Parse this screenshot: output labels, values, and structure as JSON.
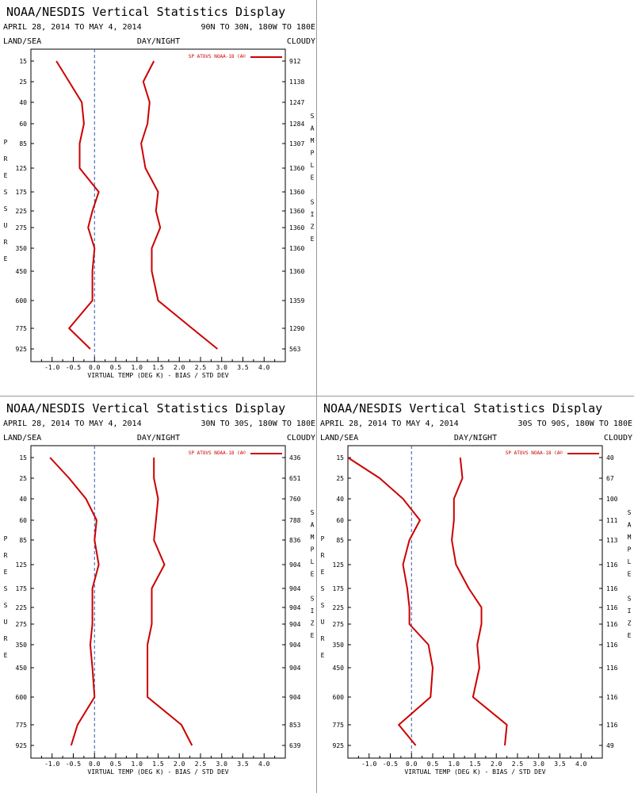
{
  "chart_data": [
    {
      "type": "line",
      "title": "NOAA/NESDIS Vertical Statistics Display",
      "date_range": "APRIL 28, 2014 TO MAY 4, 2014",
      "region": "90N TO 30N, 180W TO 180E",
      "land_sea": "LAND/SEA",
      "day_night": "DAY/NIGHT",
      "cloudy": "CLOUDY",
      "legend": "SP ATOVS NOAA-18 (A©",
      "xlabel": "VIRTUAL TEMP (DEG K) - BIAS / STD DEV",
      "ylabel_left": "PRESSURE",
      "ylabel_right": "SAMPLE SIZE",
      "xlim": [
        -1.5,
        4.5
      ],
      "xticks": [
        "-1.0",
        "-0.5",
        "0.0",
        "0.5",
        "1.0",
        "1.5",
        "2.0",
        "2.5",
        "3.0",
        "3.5",
        "4.0"
      ],
      "pressure_levels": [
        "15",
        "25",
        "40",
        "60",
        "85",
        "125",
        "175",
        "225",
        "275",
        "350",
        "450",
        "600",
        "775",
        "925"
      ],
      "sample_size": [
        "912",
        "1138",
        "1247",
        "1284",
        "1307",
        "1360",
        "1360",
        "1360",
        "1360",
        "1360",
        "1360",
        "1359",
        "1290",
        "563"
      ],
      "series": [
        {
          "values": [
            -0.9,
            -0.6,
            -0.3,
            -0.25,
            -0.35,
            -0.35,
            0.1,
            -0.05,
            -0.15,
            0.0,
            -0.05,
            -0.05,
            -0.6,
            -0.1
          ]
        },
        {
          "values": [
            1.4,
            1.15,
            1.3,
            1.25,
            1.1,
            1.2,
            1.5,
            1.45,
            1.55,
            1.35,
            1.35,
            1.5,
            2.3,
            2.9
          ]
        }
      ]
    },
    {
      "type": "line",
      "title": "NOAA/NESDIS Vertical Statistics Display",
      "date_range": "APRIL 28, 2014 TO MAY 4, 2014",
      "region": "30N TO 30S, 180W TO 180E",
      "land_sea": "LAND/SEA",
      "day_night": "DAY/NIGHT",
      "cloudy": "CLOUDY",
      "legend": "SP ATOVS NOAA-18 (A©",
      "xlabel": "VIRTUAL TEMP (DEG K) - BIAS / STD DEV",
      "ylabel_left": "PRESSURE",
      "ylabel_right": "SAMPLE SIZE",
      "xlim": [
        -1.5,
        4.5
      ],
      "xticks": [
        "-1.0",
        "-0.5",
        "0.0",
        "0.5",
        "1.0",
        "1.5",
        "2.0",
        "2.5",
        "3.0",
        "3.5",
        "4.0"
      ],
      "pressure_levels": [
        "15",
        "25",
        "40",
        "60",
        "85",
        "125",
        "175",
        "225",
        "275",
        "350",
        "450",
        "600",
        "775",
        "925"
      ],
      "sample_size": [
        "436",
        "651",
        "760",
        "788",
        "836",
        "904",
        "904",
        "904",
        "904",
        "904",
        "904",
        "904",
        "853",
        "639"
      ],
      "series": [
        {
          "values": [
            -1.05,
            -0.6,
            -0.2,
            0.05,
            0.0,
            0.1,
            -0.05,
            -0.05,
            -0.05,
            -0.1,
            -0.05,
            0.0,
            -0.4,
            -0.55
          ]
        },
        {
          "values": [
            1.4,
            1.4,
            1.5,
            1.45,
            1.4,
            1.65,
            1.35,
            1.35,
            1.35,
            1.25,
            1.25,
            1.25,
            2.05,
            2.3
          ]
        }
      ]
    },
    {
      "type": "line",
      "title": "NOAA/NESDIS Vertical Statistics Display",
      "date_range": "APRIL 28, 2014 TO MAY 4, 2014",
      "region": "30S TO 90S, 180W TO 180E",
      "land_sea": "LAND/SEA",
      "day_night": "DAY/NIGHT",
      "cloudy": "CLOUDY",
      "legend": "SP ATOVS NOAA-18 (A©",
      "xlabel": "VIRTUAL TEMP (DEG K) - BIAS / STD DEV",
      "ylabel_left": "PRESSURE",
      "ylabel_right": "SAMPLE SIZE",
      "xlim": [
        -1.5,
        4.5
      ],
      "xticks": [
        "-1.0",
        "-0.5",
        "0.0",
        "0.5",
        "1.0",
        "1.5",
        "2.0",
        "2.5",
        "3.0",
        "3.5",
        "4.0"
      ],
      "pressure_levels": [
        "15",
        "25",
        "40",
        "60",
        "85",
        "125",
        "175",
        "225",
        "275",
        "350",
        "450",
        "600",
        "775",
        "925"
      ],
      "sample_size": [
        "40",
        "67",
        "100",
        "111",
        "113",
        "116",
        "116",
        "116",
        "116",
        "116",
        "116",
        "116",
        "116",
        "49"
      ],
      "series": [
        {
          "values": [
            -1.5,
            -0.75,
            -0.2,
            0.2,
            -0.05,
            -0.2,
            -0.1,
            -0.05,
            -0.05,
            0.4,
            0.5,
            0.45,
            -0.3,
            0.1
          ]
        },
        {
          "values": [
            1.15,
            1.2,
            1.0,
            1.0,
            0.95,
            1.05,
            1.35,
            1.65,
            1.65,
            1.55,
            1.6,
            1.45,
            2.25,
            2.2
          ]
        }
      ]
    }
  ]
}
